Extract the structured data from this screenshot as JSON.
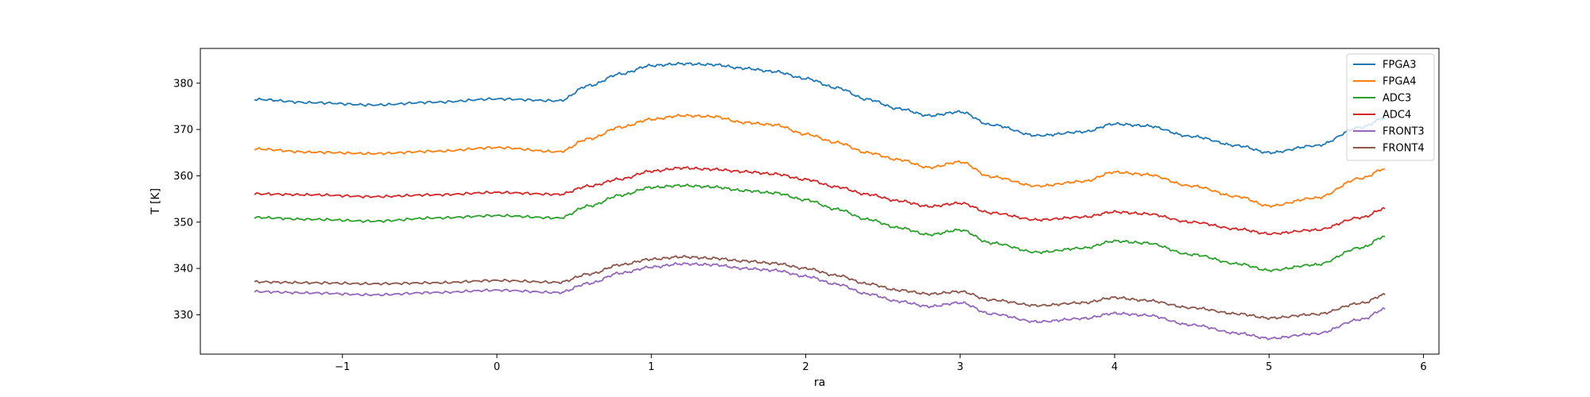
{
  "chart_data": {
    "type": "line",
    "xlabel": "ra",
    "ylabel": "T [K]",
    "xlim": [
      -1.92,
      6.1
    ],
    "ylim": [
      321.5,
      387.5
    ],
    "xticks": [
      -1,
      0,
      1,
      2,
      3,
      4,
      5,
      6
    ],
    "xtick_labels": [
      "−1",
      "0",
      "1",
      "2",
      "3",
      "4",
      "5",
      "6"
    ],
    "yticks": [
      330,
      340,
      350,
      360,
      370,
      380
    ],
    "ytick_labels": [
      "330",
      "340",
      "350",
      "360",
      "370",
      "380"
    ],
    "grid": false,
    "legend_position": "top-right",
    "x": [
      -1.57,
      -1.2,
      -0.8,
      -0.4,
      0.0,
      0.4,
      0.6,
      0.8,
      1.0,
      1.2,
      1.4,
      1.6,
      1.8,
      2.0,
      2.2,
      2.4,
      2.6,
      2.8,
      3.0,
      3.2,
      3.5,
      3.8,
      4.0,
      4.2,
      4.5,
      4.8,
      5.0,
      5.3,
      5.6,
      5.75
    ],
    "series": [
      {
        "name": "FPGA3",
        "color": "#1f77b4",
        "values": [
          376.5,
          375.8,
          375.3,
          375.9,
          376.6,
          376.2,
          379.5,
          382.0,
          383.8,
          384.2,
          384.0,
          383.2,
          382.5,
          381.0,
          379.0,
          376.5,
          374.5,
          373.0,
          373.8,
          371.0,
          368.7,
          369.5,
          371.2,
          370.8,
          368.5,
          366.5,
          365.0,
          366.5,
          370.5,
          372.5
        ]
      },
      {
        "name": "FPGA4",
        "color": "#ff7f0e",
        "values": [
          365.8,
          365.1,
          364.8,
          365.3,
          366.1,
          365.2,
          368.0,
          370.5,
          372.2,
          373.0,
          372.8,
          371.5,
          371.0,
          369.0,
          367.2,
          365.0,
          363.5,
          361.8,
          363.0,
          359.8,
          357.8,
          358.8,
          360.8,
          360.3,
          357.8,
          355.5,
          353.5,
          355.2,
          359.5,
          361.5
        ]
      },
      {
        "name": "ADC3",
        "color": "#2ca02c",
        "values": [
          351.0,
          350.6,
          350.2,
          350.9,
          351.4,
          350.9,
          353.5,
          355.8,
          357.5,
          357.9,
          357.6,
          356.8,
          356.3,
          354.8,
          352.8,
          350.6,
          348.8,
          347.3,
          348.3,
          345.5,
          343.5,
          344.4,
          345.9,
          345.5,
          343.0,
          341.0,
          339.6,
          340.8,
          344.5,
          346.9
        ]
      },
      {
        "name": "ADC4",
        "color": "#d62728",
        "values": [
          356.1,
          355.9,
          355.5,
          355.9,
          356.4,
          356.0,
          357.8,
          359.3,
          361.0,
          361.7,
          361.4,
          360.9,
          360.4,
          359.2,
          357.6,
          356.0,
          354.6,
          353.4,
          354.1,
          352.0,
          350.5,
          351.1,
          352.2,
          351.8,
          350.0,
          348.5,
          347.5,
          348.3,
          351.0,
          352.9
        ]
      },
      {
        "name": "FRONT3",
        "color": "#9467bd",
        "values": [
          335.0,
          334.7,
          334.3,
          334.8,
          335.3,
          334.8,
          336.8,
          339.0,
          340.3,
          341.0,
          340.8,
          340.0,
          339.6,
          338.3,
          336.6,
          334.5,
          332.9,
          331.8,
          332.6,
          330.2,
          328.5,
          329.2,
          330.3,
          329.9,
          327.8,
          326.0,
          324.9,
          325.9,
          329.0,
          331.2
        ]
      },
      {
        "name": "FRONT4",
        "color": "#8c564b",
        "values": [
          337.1,
          336.9,
          336.7,
          336.9,
          337.4,
          337.0,
          338.8,
          340.8,
          342.0,
          342.5,
          342.2,
          341.6,
          341.1,
          340.0,
          338.5,
          336.7,
          335.3,
          334.5,
          335.0,
          333.2,
          332.0,
          332.6,
          333.7,
          333.1,
          331.5,
          330.2,
          329.3,
          330.1,
          332.5,
          334.3
        ]
      }
    ]
  }
}
